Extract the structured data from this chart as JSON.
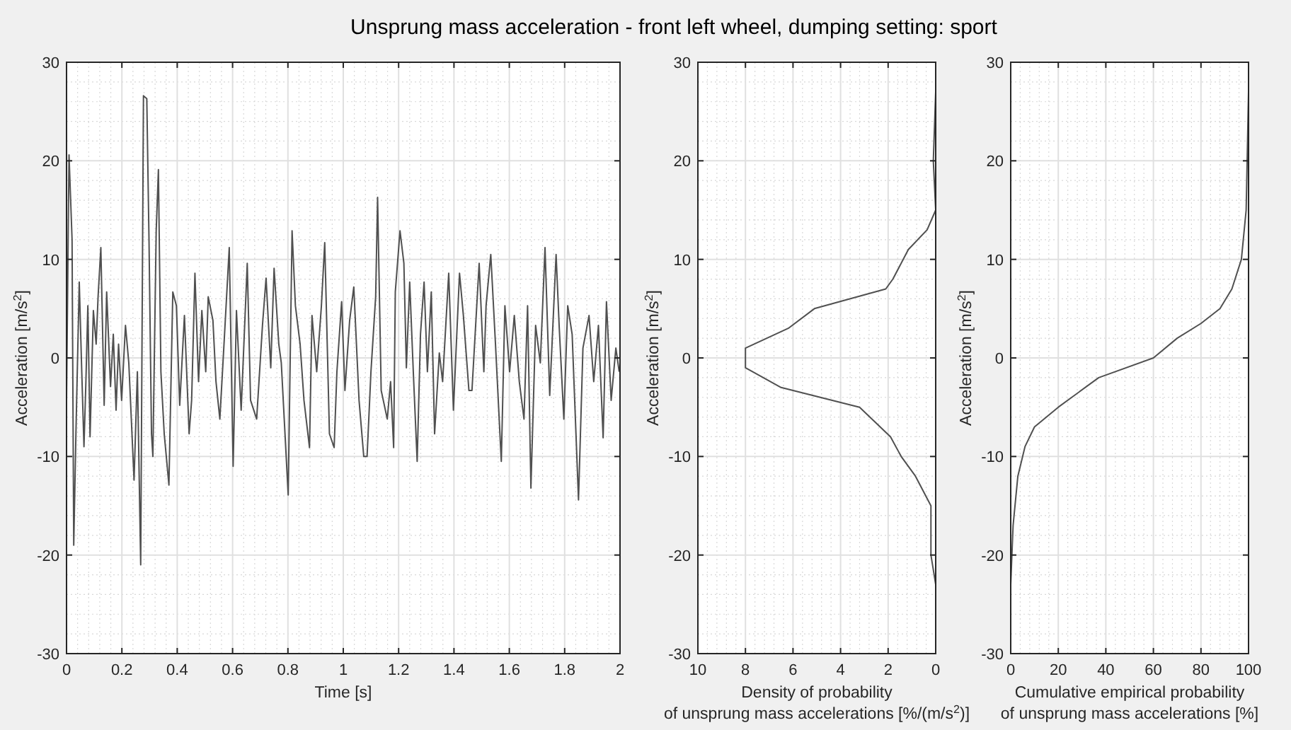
{
  "chart_data": [
    {
      "type": "line",
      "title": "Unsprung mass acceleration - front left wheel, dumping setting: sport",
      "xlabel": "Time [s]",
      "ylabel": "Acceleration [m/s$^{2}$]",
      "xlim": [
        0,
        2
      ],
      "xticks": [
        0,
        0.2,
        0.4,
        0.6,
        0.8,
        1,
        1.2,
        1.4,
        1.6,
        1.8,
        2
      ],
      "ylim": [
        -30,
        30
      ],
      "yticks": [
        -30,
        -20,
        -10,
        0,
        10,
        20,
        30
      ],
      "grid": true,
      "line_style": "solid",
      "series": [
        {
          "color": "#505050",
          "x": [
            0,
            0.009,
            0.02,
            0.026,
            0.034,
            0.046,
            0.055,
            0.063,
            0.07,
            0.077,
            0.085,
            0.097,
            0.107,
            0.114,
            0.124,
            0.136,
            0.145,
            0.159,
            0.169,
            0.179,
            0.188,
            0.199,
            0.213,
            0.225,
            0.244,
            0.256,
            0.268,
            0.278,
            0.29,
            0.298,
            0.307,
            0.312,
            0.324,
            0.332,
            0.341,
            0.353,
            0.37,
            0.384,
            0.397,
            0.409,
            0.426,
            0.443,
            0.452,
            0.464,
            0.477,
            0.489,
            0.503,
            0.512,
            0.529,
            0.54,
            0.554,
            0.571,
            0.588,
            0.602,
            0.614,
            0.631,
            0.653,
            0.665,
            0.687,
            0.708,
            0.721,
            0.738,
            0.75,
            0.767,
            0.776,
            0.801,
            0.815,
            0.827,
            0.844,
            0.858,
            0.878,
            0.887,
            0.904,
            0.921,
            0.933,
            0.95,
            0.967,
            0.977,
            0.994,
            1.006,
            1.023,
            1.038,
            1.057,
            1.074,
            1.086,
            1.1,
            1.117,
            1.124,
            1.137,
            1.159,
            1.171,
            1.182,
            1.188,
            1.205,
            1.219,
            1.228,
            1.24,
            1.253,
            1.267,
            1.279,
            1.292,
            1.304,
            1.318,
            1.33,
            1.347,
            1.359,
            1.381,
            1.398,
            1.42,
            1.434,
            1.454,
            1.465,
            1.491,
            1.508,
            1.516,
            1.533,
            1.55,
            1.571,
            1.584,
            1.601,
            1.618,
            1.636,
            1.653,
            1.666,
            1.678,
            1.695,
            1.712,
            1.729,
            1.746,
            1.769,
            1.78,
            1.797,
            1.811,
            1.827,
            1.85,
            1.866,
            1.888,
            1.905,
            1.922,
            1.939,
            1.951,
            1.968,
            1.985,
            1.997
          ],
          "values": [
            -4.3,
            20.6,
            12,
            -19,
            -7.6,
            7.7,
            -1.4,
            -9,
            -2.4,
            5.3,
            -8,
            4.8,
            1.4,
            6.2,
            11.2,
            -4.8,
            6.7,
            -2.9,
            2.4,
            -5.3,
            1.4,
            -4.3,
            3.3,
            -0.5,
            -12.4,
            -1.4,
            -21,
            26.6,
            26.3,
            12,
            -7.7,
            -10,
            12.9,
            19.1,
            -1.4,
            -7.7,
            -12.9,
            6.7,
            5.3,
            -4.8,
            4.3,
            -7.7,
            -4.3,
            8.6,
            -2.4,
            4.8,
            -1.4,
            6.2,
            3.8,
            -2.4,
            -6.2,
            2.4,
            11.2,
            -11,
            4.8,
            -5.3,
            9.6,
            -4.3,
            -6.2,
            3.3,
            8.1,
            -1,
            9.1,
            1.4,
            -0.5,
            -13.9,
            12.9,
            5.3,
            1.4,
            -4.3,
            -9.1,
            4.3,
            -1.4,
            5.3,
            11.7,
            -7.7,
            -9.1,
            -1.4,
            5.7,
            -3.3,
            3.8,
            7.2,
            -4.3,
            -10,
            -10,
            -1.4,
            6.2,
            16.3,
            -3.3,
            -6.2,
            -2.4,
            -9.1,
            6.7,
            12.9,
            9.6,
            -1,
            7.7,
            -1.4,
            -10.5,
            2.4,
            7.7,
            -1.4,
            6.7,
            -7.7,
            0.5,
            -2.4,
            8.6,
            -5.3,
            8.6,
            4.3,
            -3.3,
            -3.3,
            9.6,
            -1.4,
            5.3,
            10.5,
            1.4,
            -10.5,
            5.3,
            -1.4,
            4.3,
            -2.4,
            -6.2,
            5.3,
            -13.2,
            3.3,
            -0.5,
            11.2,
            -3.8,
            10.5,
            3.3,
            -6.2,
            5.3,
            2.4,
            -14.4,
            1,
            4.3,
            -2.4,
            3.3,
            -8.1,
            5.7,
            -4.3,
            1,
            -1.4
          ]
        }
      ]
    },
    {
      "type": "line",
      "xlabel": "Density of probability\nof unsprung mass accelerations [%/(m/s$^{2}$)]",
      "ylabel": "Acceleration [m/s$^{2}$]",
      "xlim": [
        10,
        0
      ],
      "xticks": [
        10,
        8,
        6,
        4,
        2,
        0
      ],
      "ylim": [
        -30,
        30
      ],
      "yticks": [
        -30,
        -20,
        -10,
        0,
        10,
        20,
        30
      ],
      "grid": true,
      "line_style": "solid",
      "series": [
        {
          "color": "#505050",
          "x": [
            0,
            0.2,
            0.2,
            0.85,
            1.45,
            1.9,
            3.2,
            6.5,
            8,
            8,
            6.2,
            5.1,
            2.1,
            1.8,
            1.15,
            0.36,
            0,
            0.1,
            0
          ],
          "values": [
            -23,
            -20,
            -15,
            -12,
            -10,
            -8,
            -5,
            -3,
            -1,
            1,
            3,
            5,
            7,
            8,
            11,
            13,
            15,
            20,
            27
          ]
        }
      ]
    },
    {
      "type": "line",
      "xlabel": "Cumulative empirical probability\nof unsprung mass accelerations [%]",
      "ylabel": "Acceleration [m/s$^{2}$]",
      "xlim": [
        0,
        100
      ],
      "xticks": [
        0,
        20,
        40,
        60,
        80,
        100
      ],
      "ylim": [
        -30,
        30
      ],
      "yticks": [
        -30,
        -20,
        -10,
        0,
        10,
        20,
        30
      ],
      "grid": true,
      "line_style": "solid",
      "series": [
        {
          "color": "#505050",
          "x": [
            0,
            1,
            3,
            6,
            10,
            20,
            37,
            60,
            70,
            80,
            88,
            93,
            97,
            99,
            100
          ],
          "values": [
            -23,
            -17,
            -12,
            -9,
            -7,
            -5,
            -2,
            0,
            2,
            3.5,
            5,
            7,
            10,
            15,
            27
          ]
        }
      ]
    }
  ]
}
